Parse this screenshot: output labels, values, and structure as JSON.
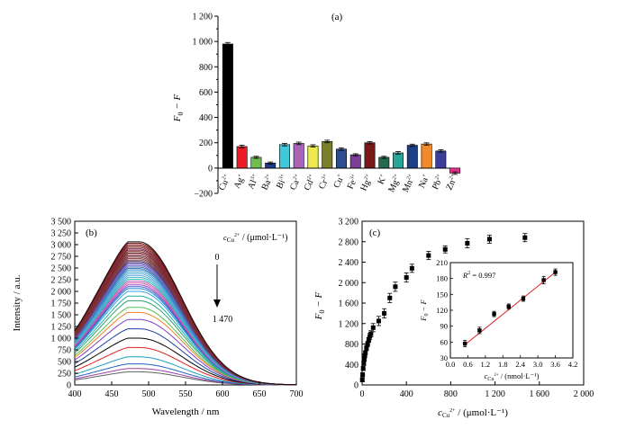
{
  "panel_a": {
    "panel_label": "(a)",
    "ylabel_main": "F",
    "ylabel_sub": "0",
    "ylabel_rest": " − F",
    "y_tick_labels": [
      "−200",
      "0",
      "200",
      "400",
      "600",
      "800",
      "1 000",
      "1 200"
    ]
  },
  "panel_b": {
    "panel_label": "(b)",
    "xlabel": "Wavelength / nm",
    "ylabel": "Intensity / a.u.",
    "x_tick_labels": [
      "400",
      "450",
      "500",
      "550",
      "600",
      "650",
      "700"
    ],
    "y_tick_labels": [
      "0",
      "250",
      "500",
      "750",
      "1 000",
      "1 250",
      "1 500",
      "1 750",
      "2 000",
      "2 250",
      "2 500",
      "2 750",
      "3 000",
      "3 250",
      "3 500"
    ],
    "conc_label_c": "c",
    "conc_label_sub": "Cu",
    "conc_label_sup": "2+",
    "conc_label_unit": " / (μmol·L⁻¹)",
    "arrow_start_label": "0",
    "arrow_end_label": "1 470"
  },
  "panel_c": {
    "panel_label": "(c)",
    "ylabel_main": "F",
    "ylabel_sub": "0",
    "ylabel_rest": " − F",
    "xlabel_c": "c",
    "xlabel_sub": "Cu",
    "xlabel_sup": "2+",
    "xlabel_unit": " / (μmol·L⁻¹)",
    "x_tick_labels": [
      "0",
      "400",
      "800",
      "1 200",
      "1 600",
      "2 000"
    ],
    "y_tick_labels": [
      "0",
      "400",
      "800",
      "1 200",
      "1 600",
      "2 000",
      "2 400",
      "2 800",
      "3 200"
    ],
    "inset": {
      "r2_label": "R",
      "r2_sup": "2",
      "r2_value": " = 0.997",
      "x_tick_labels": [
        "0.0",
        "0.6",
        "1.2",
        "1.8",
        "2.4",
        "3.0",
        "3.6",
        "4.2"
      ],
      "y_tick_labels": [
        "30",
        "60",
        "90",
        "120",
        "150",
        "180",
        "210"
      ],
      "xlabel_c": "c",
      "xlabel_sub": "Cu",
      "xlabel_sup": "2+",
      "xlabel_unit": " / (nmol·L⁻¹)"
    }
  },
  "chart_data": [
    {
      "type": "bar",
      "panel": "(a)",
      "categories": [
        "Cu2+",
        "Ag+",
        "Al3+",
        "Ba2+",
        "Bi3+",
        "Ca2+",
        "Cd2+",
        "Cr3+",
        "Cu+",
        "Fe3+",
        "Hg2+",
        "K+",
        "Mg2+",
        "Mn2+",
        "Na+",
        "Pb2+",
        "Zn2+"
      ],
      "category_labels": [
        {
          "base": "Cu",
          "sup": "2+"
        },
        {
          "base": "Ag",
          "sup": "+"
        },
        {
          "base": "Al",
          "sup": "3+"
        },
        {
          "base": "Ba",
          "sup": "2+"
        },
        {
          "base": "Bi",
          "sup": "3+"
        },
        {
          "base": "Ca",
          "sup": "2+"
        },
        {
          "base": "Cd",
          "sup": "2+"
        },
        {
          "base": "Cr",
          "sup": "3+"
        },
        {
          "base": "Cu",
          "sup": "+"
        },
        {
          "base": "Fe",
          "sup": "3+"
        },
        {
          "base": "Hg",
          "sup": "2+"
        },
        {
          "base": "K",
          "sup": "+"
        },
        {
          "base": "Mg",
          "sup": "2+"
        },
        {
          "base": "Mn",
          "sup": "2+"
        },
        {
          "base": "Na",
          "sup": "+"
        },
        {
          "base": "Pb",
          "sup": "2+"
        },
        {
          "base": "Zn",
          "sup": "2+"
        }
      ],
      "values": [
        980,
        170,
        85,
        40,
        185,
        195,
        175,
        210,
        150,
        105,
        200,
        85,
        120,
        180,
        190,
        135,
        -40
      ],
      "errors": [
        12,
        10,
        8,
        8,
        10,
        10,
        9,
        10,
        10,
        8,
        9,
        8,
        10,
        9,
        9,
        9,
        10
      ],
      "colors": [
        "#000000",
        "#ee1c24",
        "#6cbf4a",
        "#1f3a8a",
        "#42c6d9",
        "#a964b7",
        "#ede94f",
        "#7b7f2b",
        "#2b4e8f",
        "#7c3f98",
        "#7a1717",
        "#236b4e",
        "#2aa59a",
        "#1d3f84",
        "#f18a2a",
        "#3b3d99",
        "#e62f8a"
      ],
      "ylabel": "F0 − F",
      "ylim": [
        -200,
        1200
      ]
    },
    {
      "type": "line",
      "panel": "(b)",
      "xlabel": "Wavelength / nm",
      "ylabel": "Intensity / a.u.",
      "xlim": [
        400,
        700
      ],
      "ylim": [
        0,
        3500
      ],
      "peak_wavelength": 487,
      "curve_peaks": [
        3060,
        3030,
        3000,
        2970,
        2940,
        2910,
        2880,
        2850,
        2820,
        2790,
        2760,
        2730,
        2700,
        2670,
        2640,
        2610,
        2580,
        2550,
        2520,
        2490,
        2460,
        2420,
        2380,
        2340,
        2300,
        2260,
        2220,
        2180,
        2140,
        2100,
        2060,
        2000,
        1900,
        1800,
        1660,
        1550,
        1400,
        1200,
        1000,
        800,
        600,
        450,
        350,
        280
      ],
      "curve_colors": [
        "#111111",
        "#7a1010",
        "#8b1d1d",
        "#6e2a2a",
        "#943030",
        "#6a1a4a",
        "#7e3a3a",
        "#8a2020",
        "#5a2a2a",
        "#9a3b3b",
        "#7a2a50",
        "#6b3a2a",
        "#883344",
        "#7d4a4a",
        "#4a2a6a",
        "#5a4a9a",
        "#6b5ab0",
        "#7e6acb",
        "#3a6ab0",
        "#4a7ac0",
        "#2a8ac0",
        "#3a9ad0",
        "#4aaad0",
        "#5aa0e0",
        "#3ab0c0",
        "#2ac0b0",
        "#c050c0",
        "#d060a0",
        "#a040c0",
        "#4060d0",
        "#2080d0",
        "#30a0e0",
        "#20b0a0",
        "#30a070",
        "#50c050",
        "#f08020",
        "#8040c0",
        "#2040a0",
        "#000000",
        "#e02020",
        "#20a0c0",
        "#2060c0",
        "#a040a0",
        "#606060"
      ],
      "arrow_label_start": "0",
      "arrow_label_end": "1 470"
    },
    {
      "type": "scatter",
      "panel": "(c)",
      "xlabel": "cCu2+ / (μmol·L⁻¹)",
      "ylabel": "F0 − F",
      "xlim": [
        0,
        2000
      ],
      "ylim": [
        0,
        3200
      ],
      "x": [
        2,
        5,
        10,
        15,
        20,
        25,
        30,
        40,
        50,
        60,
        70,
        80,
        100,
        150,
        200,
        250,
        300,
        400,
        450,
        600,
        750,
        950,
        1150,
        1470
      ],
      "y": [
        100,
        200,
        320,
        420,
        500,
        570,
        630,
        720,
        800,
        880,
        950,
        1000,
        1120,
        1250,
        1400,
        1700,
        1920,
        2100,
        2280,
        2530,
        2650,
        2770,
        2850,
        2880
      ],
      "errors": [
        40,
        40,
        40,
        40,
        40,
        40,
        40,
        50,
        50,
        50,
        60,
        60,
        80,
        90,
        90,
        90,
        90,
        90,
        80,
        80,
        70,
        90,
        80,
        80
      ],
      "inset": {
        "type": "scatter",
        "xlabel": "cCu2+ / (nmol·L⁻¹)",
        "ylabel": "F0 − F",
        "xlim": [
          0.0,
          4.2
        ],
        "ylim": [
          30,
          210
        ],
        "x": [
          0.5,
          1.0,
          1.5,
          2.0,
          2.5,
          3.2,
          3.6
        ],
        "y": [
          57,
          82,
          113,
          127,
          142,
          177,
          192
        ],
        "errors": [
          6,
          6,
          5,
          5,
          5,
          7,
          6
        ],
        "fit_line": {
          "x": [
            0.5,
            3.6
          ],
          "y": [
            55,
            192
          ],
          "color": "#e02020"
        },
        "annotation": "R2 = 0.997"
      }
    }
  ]
}
